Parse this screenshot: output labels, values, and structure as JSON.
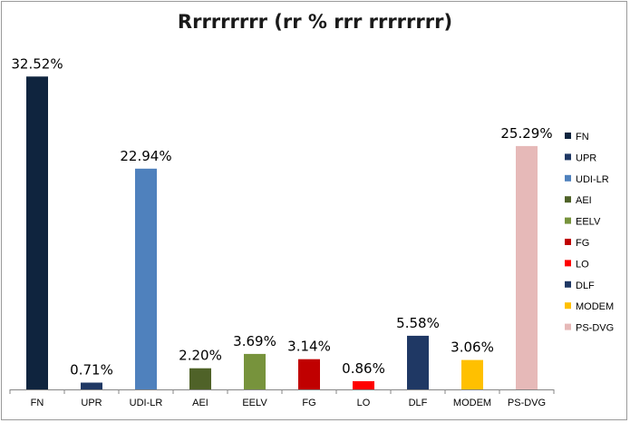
{
  "chart_data": {
    "type": "bar",
    "title": "Rrrrrrrrr (rr % rrr rrrrrrrr)",
    "categories": [
      "FN",
      "UPR",
      "UDI-LR",
      "AEI",
      "EELV",
      "FG",
      "LO",
      "DLF",
      "MODEM",
      "PS-DVG"
    ],
    "values": [
      32.52,
      0.71,
      22.94,
      2.2,
      3.69,
      3.14,
      0.86,
      5.58,
      3.06,
      25.29
    ],
    "value_labels": [
      "32.52%",
      "0.71%",
      "22.94%",
      "2.20%",
      "3.69%",
      "3.14%",
      "0.86%",
      "5.58%",
      "3.06%",
      "25.29%"
    ],
    "colors": [
      "#0F243E",
      "#1F3864",
      "#4F81BD",
      "#4F6228",
      "#77933C",
      "#C00000",
      "#FF0000",
      "#1F3864",
      "#FFC000",
      "#E6B9B8"
    ],
    "legend": [
      "FN",
      "UPR",
      "UDI-LR",
      "AEI",
      "EELV",
      "FG",
      "LO",
      "DLF",
      "MODEM",
      "PS-DVG"
    ],
    "legend_position": "right",
    "ylim": [
      0,
      34
    ],
    "grid": false,
    "xlabel": "",
    "ylabel": ""
  }
}
